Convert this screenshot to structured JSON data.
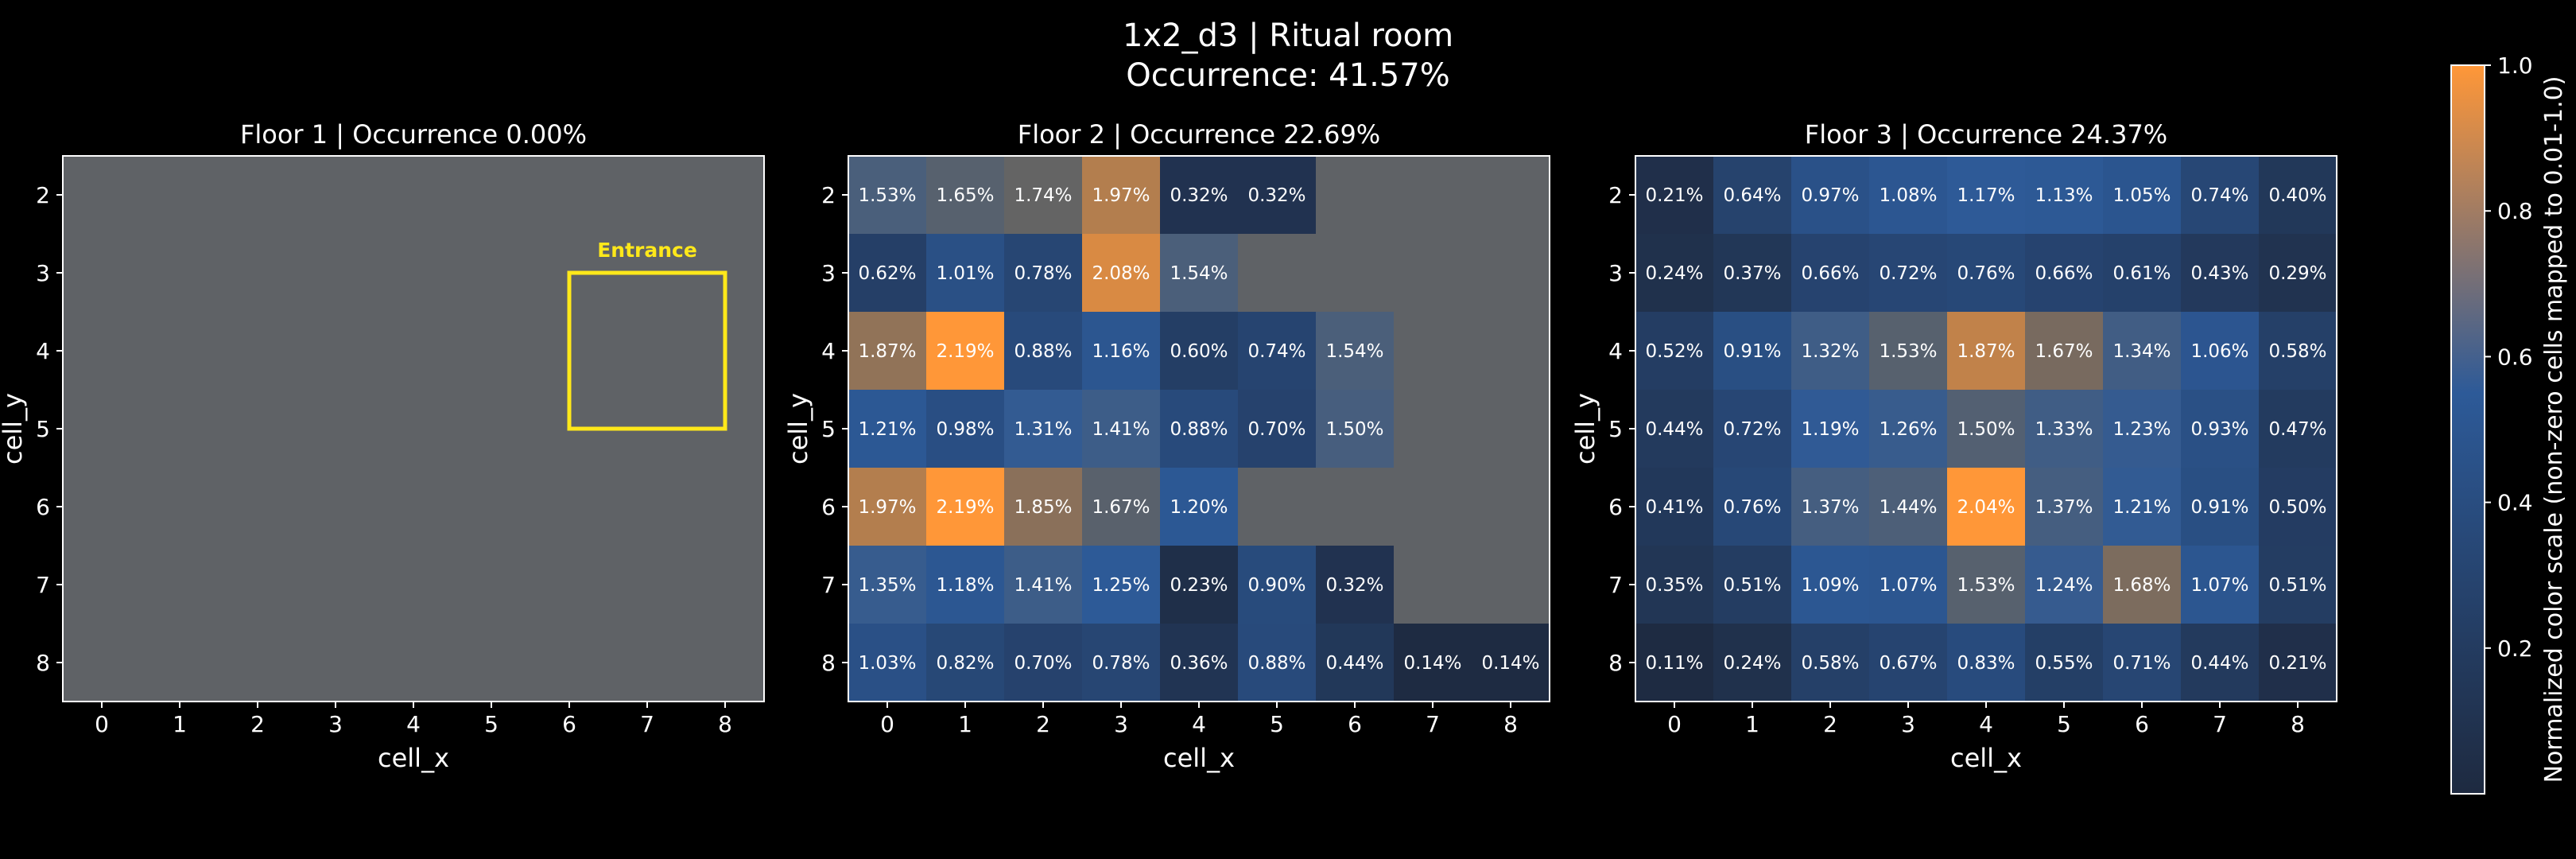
{
  "figure": {
    "title_line1": "1x2_d3 | Ritual room",
    "title_line2": "Occurrence: 41.57%"
  },
  "colorbar": {
    "label": "Normalized color scale (non-zero cells mapped to 0.01-1.0)",
    "ticks": [
      "0.2",
      "0.4",
      "0.6",
      "0.8",
      "1.0"
    ],
    "tick_values": [
      0.2,
      0.4,
      0.6,
      0.8,
      1.0
    ],
    "low_color": "#1e2a40",
    "mid_color": "#2d5a98",
    "high_color": "#ff9738"
  },
  "colors": {
    "background": "#000000",
    "empty_cell": "#5f6266",
    "text": "#ffffff",
    "entrance": "#ffe81a"
  },
  "chart_data": [
    {
      "type": "heatmap",
      "title": "Floor 1 | Occurrence 0.00%",
      "xlabel": "cell_x",
      "ylabel": "cell_y",
      "x_ticks": [
        0,
        1,
        2,
        3,
        4,
        5,
        6,
        7,
        8
      ],
      "y_ticks": [
        2,
        3,
        4,
        5,
        6,
        7,
        8
      ],
      "values": [
        [
          null,
          null,
          null,
          null,
          null,
          null,
          null,
          null,
          null
        ],
        [
          null,
          null,
          null,
          null,
          null,
          null,
          null,
          null,
          null
        ],
        [
          null,
          null,
          null,
          null,
          null,
          null,
          null,
          null,
          null
        ],
        [
          null,
          null,
          null,
          null,
          null,
          null,
          null,
          null,
          null
        ],
        [
          null,
          null,
          null,
          null,
          null,
          null,
          null,
          null,
          null
        ],
        [
          null,
          null,
          null,
          null,
          null,
          null,
          null,
          null,
          null
        ],
        [
          null,
          null,
          null,
          null,
          null,
          null,
          null,
          null,
          null
        ]
      ],
      "annotation": {
        "label": "Entrance",
        "x_range": [
          7,
          8
        ],
        "y_range": [
          4,
          5
        ]
      }
    },
    {
      "type": "heatmap",
      "title": "Floor 2 | Occurrence 22.69%",
      "xlabel": "cell_x",
      "ylabel": "cell_y",
      "x_ticks": [
        0,
        1,
        2,
        3,
        4,
        5,
        6,
        7,
        8
      ],
      "y_ticks": [
        2,
        3,
        4,
        5,
        6,
        7,
        8
      ],
      "values": [
        [
          1.53,
          1.65,
          1.74,
          1.97,
          0.32,
          0.32,
          null,
          null,
          null
        ],
        [
          0.62,
          1.01,
          0.78,
          2.08,
          1.54,
          null,
          null,
          null,
          null
        ],
        [
          1.87,
          2.19,
          0.88,
          1.16,
          0.6,
          0.74,
          1.54,
          null,
          null
        ],
        [
          1.21,
          0.98,
          1.31,
          1.41,
          0.88,
          0.7,
          1.5,
          null,
          null
        ],
        [
          1.97,
          2.19,
          1.85,
          1.67,
          1.2,
          null,
          null,
          null,
          null
        ],
        [
          1.35,
          1.18,
          1.41,
          1.25,
          0.23,
          0.9,
          0.32,
          null,
          null
        ],
        [
          1.03,
          0.82,
          0.7,
          0.78,
          0.36,
          0.88,
          0.44,
          0.14,
          0.14
        ]
      ]
    },
    {
      "type": "heatmap",
      "title": "Floor 3 | Occurrence 24.37%",
      "xlabel": "cell_x",
      "ylabel": "cell_y",
      "x_ticks": [
        0,
        1,
        2,
        3,
        4,
        5,
        6,
        7,
        8
      ],
      "y_ticks": [
        2,
        3,
        4,
        5,
        6,
        7,
        8
      ],
      "values": [
        [
          0.21,
          0.64,
          0.97,
          1.08,
          1.17,
          1.13,
          1.05,
          0.74,
          0.4
        ],
        [
          0.24,
          0.37,
          0.66,
          0.72,
          0.76,
          0.66,
          0.61,
          0.43,
          0.29
        ],
        [
          0.52,
          0.91,
          1.32,
          1.53,
          1.87,
          1.67,
          1.34,
          1.06,
          0.58
        ],
        [
          0.44,
          0.72,
          1.19,
          1.26,
          1.5,
          1.33,
          1.23,
          0.93,
          0.47
        ],
        [
          0.41,
          0.76,
          1.37,
          1.44,
          2.04,
          1.37,
          1.21,
          0.91,
          0.5
        ],
        [
          0.35,
          0.51,
          1.09,
          1.07,
          1.53,
          1.24,
          1.68,
          1.07,
          0.51
        ],
        [
          0.11,
          0.24,
          0.58,
          0.67,
          0.83,
          0.55,
          0.71,
          0.44,
          0.21
        ]
      ]
    }
  ]
}
